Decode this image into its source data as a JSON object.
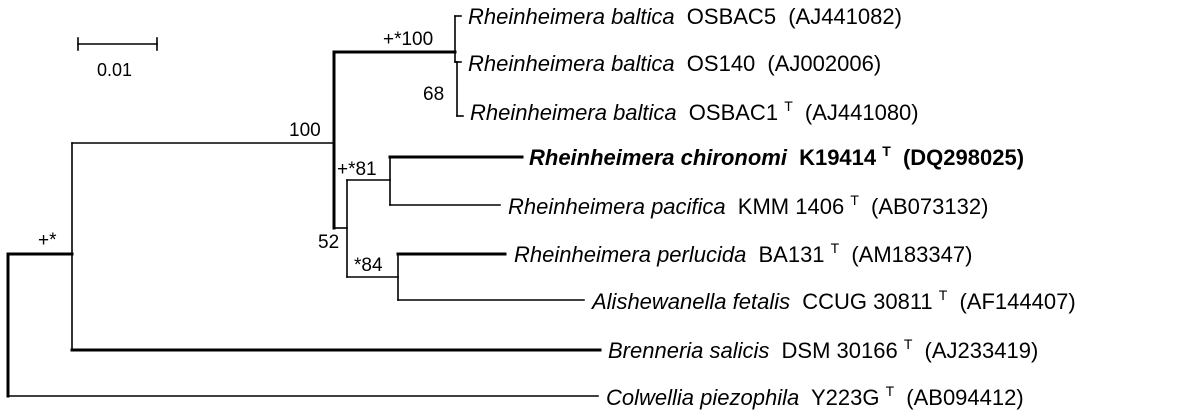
{
  "scale_bar": {
    "label": "0.01"
  },
  "taxa": [
    {
      "key": "t1",
      "species": "Rheinheimera baltica",
      "strain": "OSBAC5",
      "type_mark": "",
      "accession": "(AJ441082)",
      "highlight": false
    },
    {
      "key": "t2",
      "species": "Rheinheimera baltica",
      "strain": "OS140",
      "type_mark": "",
      "accession": "(AJ002006)",
      "highlight": false
    },
    {
      "key": "t3",
      "species": "Rheinheimera baltica",
      "strain": "OSBAC1",
      "type_mark": "T",
      "accession": "(AJ441080)",
      "highlight": false
    },
    {
      "key": "t4",
      "species": "Rheinheimera chironomi",
      "strain": "K19414",
      "type_mark": "T",
      "accession": "(DQ298025)",
      "highlight": true
    },
    {
      "key": "t5",
      "species": "Rheinheimera pacifica",
      "strain": "KMM 1406",
      "type_mark": "T",
      "accession": "(AB073132)",
      "highlight": false
    },
    {
      "key": "t6",
      "species": "Rheinheimera perlucida",
      "strain": "BA131",
      "type_mark": "T",
      "accession": "(AM183347)",
      "highlight": false
    },
    {
      "key": "t7",
      "species": "Alishewanella fetalis",
      "strain": "CCUG 30811",
      "type_mark": "T",
      "accession": "(AF144407)",
      "highlight": false
    },
    {
      "key": "t8",
      "species": "Brenneria salicis",
      "strain": "DSM 30166",
      "type_mark": "T",
      "accession": "(AJ233419)",
      "highlight": false
    },
    {
      "key": "t9",
      "species": "Colwellia piezophila",
      "strain": "Y223G",
      "type_mark": "T",
      "accession": "(AB094412)",
      "highlight": false
    }
  ],
  "node_labels": {
    "baltica_clade": "+*100",
    "baltica_inner": "68",
    "rheinheimera_clade": "100",
    "chironomi_pacifica": "+*81",
    "core_group": "52",
    "perlucida_alishewanella": "*84",
    "ingroup": "+*"
  }
}
